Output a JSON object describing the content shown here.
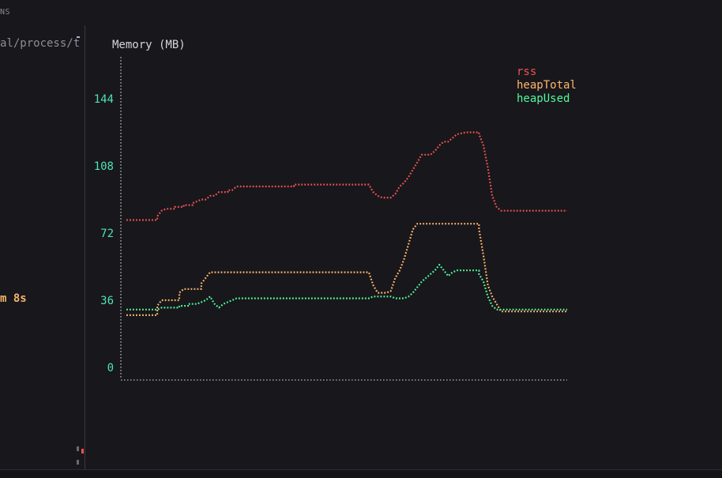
{
  "window": {
    "top_label": "NS",
    "path_text": "al/process/t",
    "elapsed_text": "m 8s"
  },
  "colors": {
    "background": "#18171c",
    "axis": "#9a98a0",
    "rss": "#ef5350",
    "heapTotal": "#ffb86c",
    "heapUsed": "#50fa9b",
    "tick": "#4fe3b0"
  },
  "chart_data": {
    "type": "line",
    "title": "Memory (MB)",
    "ylim": [
      0,
      170
    ],
    "yticks": [
      0,
      36,
      72,
      108,
      144
    ],
    "xlim": [
      0,
      100
    ],
    "grid": false,
    "legend_position": "top-right",
    "series": [
      {
        "name": "rss",
        "color": "#ef5350",
        "points": [
          [
            0,
            79
          ],
          [
            7,
            79
          ],
          [
            7,
            81
          ],
          [
            8,
            84
          ],
          [
            9,
            85
          ],
          [
            11,
            85
          ],
          [
            11,
            86
          ],
          [
            13,
            86
          ],
          [
            13,
            87
          ],
          [
            15,
            87
          ],
          [
            15,
            88
          ],
          [
            16,
            89
          ],
          [
            17,
            90
          ],
          [
            18,
            90
          ],
          [
            19,
            92
          ],
          [
            20,
            92
          ],
          [
            21,
            94
          ],
          [
            23,
            94
          ],
          [
            23,
            95
          ],
          [
            24,
            95
          ],
          [
            25,
            97
          ],
          [
            34,
            97
          ],
          [
            36,
            97
          ],
          [
            38,
            97
          ],
          [
            38,
            98
          ],
          [
            55,
            98
          ],
          [
            55,
            98
          ],
          [
            56,
            94
          ],
          [
            57,
            92
          ],
          [
            58,
            91
          ],
          [
            60,
            91
          ],
          [
            61,
            93
          ],
          [
            62,
            97
          ],
          [
            63,
            99
          ],
          [
            64,
            102
          ],
          [
            65,
            106
          ],
          [
            66,
            110
          ],
          [
            67,
            114
          ],
          [
            69,
            114
          ],
          [
            70,
            116
          ],
          [
            71,
            119
          ],
          [
            72,
            121
          ],
          [
            73,
            121
          ],
          [
            74,
            123
          ],
          [
            75,
            125
          ],
          [
            77,
            126
          ],
          [
            80,
            126
          ],
          [
            80,
            125
          ],
          [
            81,
            119
          ],
          [
            82,
            107
          ],
          [
            83,
            92
          ],
          [
            84,
            86
          ],
          [
            85,
            84
          ],
          [
            100,
            84
          ]
        ]
      },
      {
        "name": "heapTotal",
        "color": "#ffb86c",
        "points": [
          [
            0,
            28
          ],
          [
            7,
            28
          ],
          [
            7,
            33
          ],
          [
            8,
            36
          ],
          [
            9,
            36
          ],
          [
            12,
            36
          ],
          [
            12,
            40
          ],
          [
            13,
            42
          ],
          [
            17,
            42
          ],
          [
            17,
            45
          ],
          [
            18,
            48
          ],
          [
            19,
            51
          ],
          [
            20,
            51
          ],
          [
            55,
            51
          ],
          [
            55,
            51
          ],
          [
            56,
            44
          ],
          [
            57,
            40
          ],
          [
            58,
            40
          ],
          [
            59,
            40
          ],
          [
            60,
            41
          ],
          [
            61,
            48
          ],
          [
            62,
            52
          ],
          [
            63,
            58
          ],
          [
            64,
            66
          ],
          [
            65,
            74
          ],
          [
            66,
            77
          ],
          [
            77,
            77
          ],
          [
            80,
            77
          ],
          [
            80,
            74
          ],
          [
            81,
            60
          ],
          [
            82,
            44
          ],
          [
            83,
            38
          ],
          [
            84,
            34
          ],
          [
            85,
            30
          ],
          [
            100,
            30
          ]
        ]
      },
      {
        "name": "heapUsed",
        "color": "#50fa9b",
        "points": [
          [
            0,
            31
          ],
          [
            7,
            31
          ],
          [
            7,
            31
          ],
          [
            8,
            32
          ],
          [
            9,
            32
          ],
          [
            12,
            32
          ],
          [
            12,
            33
          ],
          [
            13,
            33
          ],
          [
            14,
            33
          ],
          [
            14,
            34
          ],
          [
            16,
            34
          ],
          [
            17,
            35
          ],
          [
            18,
            36
          ],
          [
            19,
            38
          ],
          [
            20,
            34
          ],
          [
            21,
            32
          ],
          [
            22,
            34
          ],
          [
            24,
            36
          ],
          [
            25,
            37
          ],
          [
            55,
            37
          ],
          [
            56,
            38
          ],
          [
            58,
            38
          ],
          [
            60,
            38
          ],
          [
            61,
            37
          ],
          [
            63,
            37
          ],
          [
            64,
            38
          ],
          [
            65,
            40
          ],
          [
            66,
            43
          ],
          [
            67,
            46
          ],
          [
            68,
            48
          ],
          [
            69,
            50
          ],
          [
            70,
            52
          ],
          [
            71,
            55
          ],
          [
            72,
            52
          ],
          [
            73,
            49
          ],
          [
            74,
            51
          ],
          [
            75,
            52
          ],
          [
            80,
            52
          ],
          [
            80,
            50
          ],
          [
            81,
            46
          ],
          [
            82,
            38
          ],
          [
            83,
            33
          ],
          [
            84,
            31
          ],
          [
            85,
            31
          ],
          [
            100,
            31
          ]
        ]
      }
    ]
  }
}
